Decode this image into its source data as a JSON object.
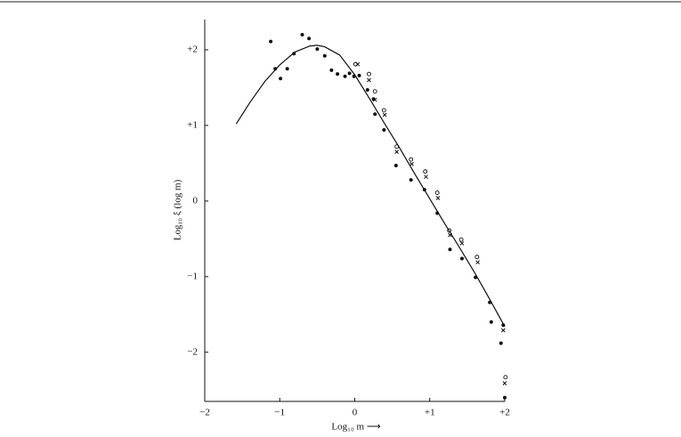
{
  "chart_data": {
    "type": "scatter",
    "xlabel": "Log₁₀ m ⟶",
    "ylabel": "Log₁₀ ξ (log m)",
    "xlim": [
      -2,
      2
    ],
    "ylim": [
      -2.65,
      2.4
    ],
    "xticks": [
      {
        "value": -2,
        "label": "−2"
      },
      {
        "value": -1,
        "label": "−1"
      },
      0,
      {
        "value": 1,
        "label": "+1"
      },
      {
        "value": 2,
        "label": "+2"
      }
    ],
    "yticks": [
      {
        "value": -2,
        "label": "−2"
      },
      {
        "value": -1,
        "label": "−1"
      },
      0,
      {
        "value": 1,
        "label": "+1"
      },
      {
        "value": 2,
        "label": "+2"
      }
    ],
    "series": [
      {
        "marker": "dot",
        "color": "#111111",
        "x": [
          -1.12,
          -1.06,
          -0.99,
          -0.9,
          -0.81,
          -0.7,
          -0.61,
          -0.5,
          -0.4,
          -0.31,
          -0.23,
          -0.13,
          -0.07,
          -0.01,
          0.06,
          0.17,
          0.25,
          0.27,
          0.39,
          0.55,
          0.75,
          0.93,
          1.1,
          1.27,
          1.43,
          1.61,
          1.8,
          1.82,
          1.95,
          1.98,
          2.0
        ],
        "values": [
          2.11,
          1.75,
          1.62,
          1.75,
          1.95,
          2.2,
          2.15,
          2.01,
          1.92,
          1.73,
          1.68,
          1.65,
          1.69,
          1.65,
          1.66,
          1.47,
          1.35,
          1.15,
          0.94,
          0.47,
          0.28,
          0.15,
          -0.16,
          -0.64,
          -0.76,
          -1.01,
          -1.34,
          -1.6,
          -1.88,
          -1.64,
          -2.6
        ]
      },
      {
        "marker": "circle",
        "color": "#111111",
        "x": [
          0.01,
          0.19,
          0.27,
          0.39,
          0.56,
          0.75,
          0.94,
          1.1,
          1.26,
          1.42,
          1.63,
          2.01
        ],
        "values": [
          1.81,
          1.68,
          1.45,
          1.2,
          0.72,
          0.55,
          0.39,
          0.11,
          -0.39,
          -0.51,
          -0.74,
          -2.33
        ]
      },
      {
        "marker": "cross",
        "color": "#111111",
        "x": [
          0.04,
          0.19,
          0.27,
          0.4,
          0.56,
          0.76,
          0.95,
          1.11,
          1.27,
          1.43,
          1.64,
          1.98,
          2.0
        ],
        "values": [
          1.81,
          1.6,
          1.34,
          1.14,
          0.65,
          0.49,
          0.32,
          0.04,
          -0.45,
          -0.56,
          -0.81,
          -1.71,
          -2.41
        ]
      },
      {
        "marker": "line",
        "color": "#111111",
        "x": [
          -1.58,
          -1.4,
          -1.2,
          -1.0,
          -0.8,
          -0.6,
          -0.5,
          -0.4,
          -0.2,
          0,
          0.2,
          0.4,
          0.6,
          0.8,
          1.0,
          1.2,
          1.4,
          1.6,
          1.8,
          2.0
        ],
        "values": [
          1.02,
          1.3,
          1.58,
          1.8,
          1.97,
          2.05,
          2.06,
          2.04,
          1.93,
          1.67,
          1.35,
          1.02,
          0.7,
          0.36,
          0.03,
          -0.3,
          -0.62,
          -0.95,
          -1.3,
          -1.66
        ]
      }
    ]
  }
}
